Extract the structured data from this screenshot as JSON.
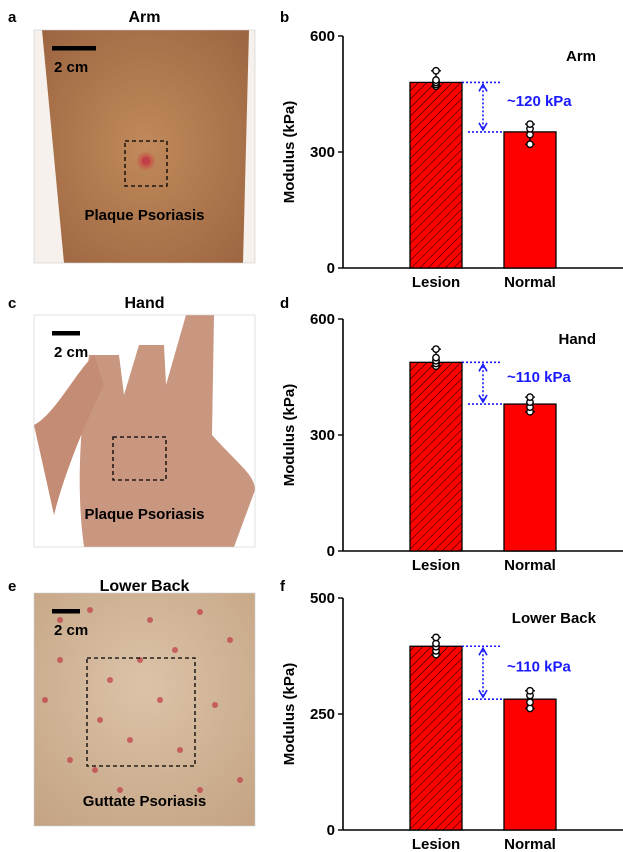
{
  "colors": {
    "bar_fill": "#ff0000",
    "bar_stroke": "#000000",
    "annotation": "#1a1aff",
    "arm_skin": "#b17a4e",
    "hand_skin": "#c99680",
    "back_skin": "#d2b79d",
    "lesion": "#c0404a"
  },
  "rows": [
    {
      "photo": {
        "letter": "a",
        "title": "Arm",
        "scale_label": "2 cm",
        "caption": "Plaque Psoriasis",
        "icon": "arm-skin-photo"
      },
      "chart_data": {
        "letter": "b",
        "type": "bar",
        "title": "Arm",
        "ylabel": "Modulus (kPa)",
        "ylim": [
          0,
          600
        ],
        "yticks": [
          0,
          300,
          600
        ],
        "categories": [
          "Lesion",
          "Normal"
        ],
        "values": [
          480,
          352
        ],
        "points": [
          [
            470,
            475,
            480,
            486,
            510
          ],
          [
            320,
            345,
            360,
            372
          ]
        ],
        "difference_label": "~120 kPa"
      }
    },
    {
      "photo": {
        "letter": "c",
        "title": "Hand",
        "scale_label": "2 cm",
        "caption": "Plaque Psoriasis",
        "icon": "hand-skin-photo"
      },
      "chart_data": {
        "letter": "d",
        "type": "bar",
        "title": "Hand",
        "ylabel": "Modulus (kPa)",
        "ylim": [
          0,
          600
        ],
        "yticks": [
          0,
          300,
          600
        ],
        "categories": [
          "Lesion",
          "Normal"
        ],
        "values": [
          488,
          380
        ],
        "points": [
          [
            478,
            485,
            492,
            500,
            522
          ],
          [
            360,
            372,
            385,
            398
          ]
        ],
        "difference_label": "~110 kPa"
      }
    },
    {
      "photo": {
        "letter": "e",
        "title": "Lower Back",
        "scale_label": "2 cm",
        "caption": "Guttate Psoriasis",
        "icon": "lower-back-skin-photo"
      },
      "chart_data": {
        "letter": "f",
        "type": "bar",
        "title": "Lower Back",
        "ylabel": "Modulus (kPa)",
        "ylim": [
          0,
          500
        ],
        "yticks": [
          0,
          250,
          500
        ],
        "categories": [
          "Lesion",
          "Normal"
        ],
        "values": [
          396,
          282
        ],
        "points": [
          [
            378,
            386,
            395,
            402,
            415
          ],
          [
            262,
            275,
            290,
            300
          ]
        ],
        "difference_label": "~110 kPa"
      }
    }
  ]
}
